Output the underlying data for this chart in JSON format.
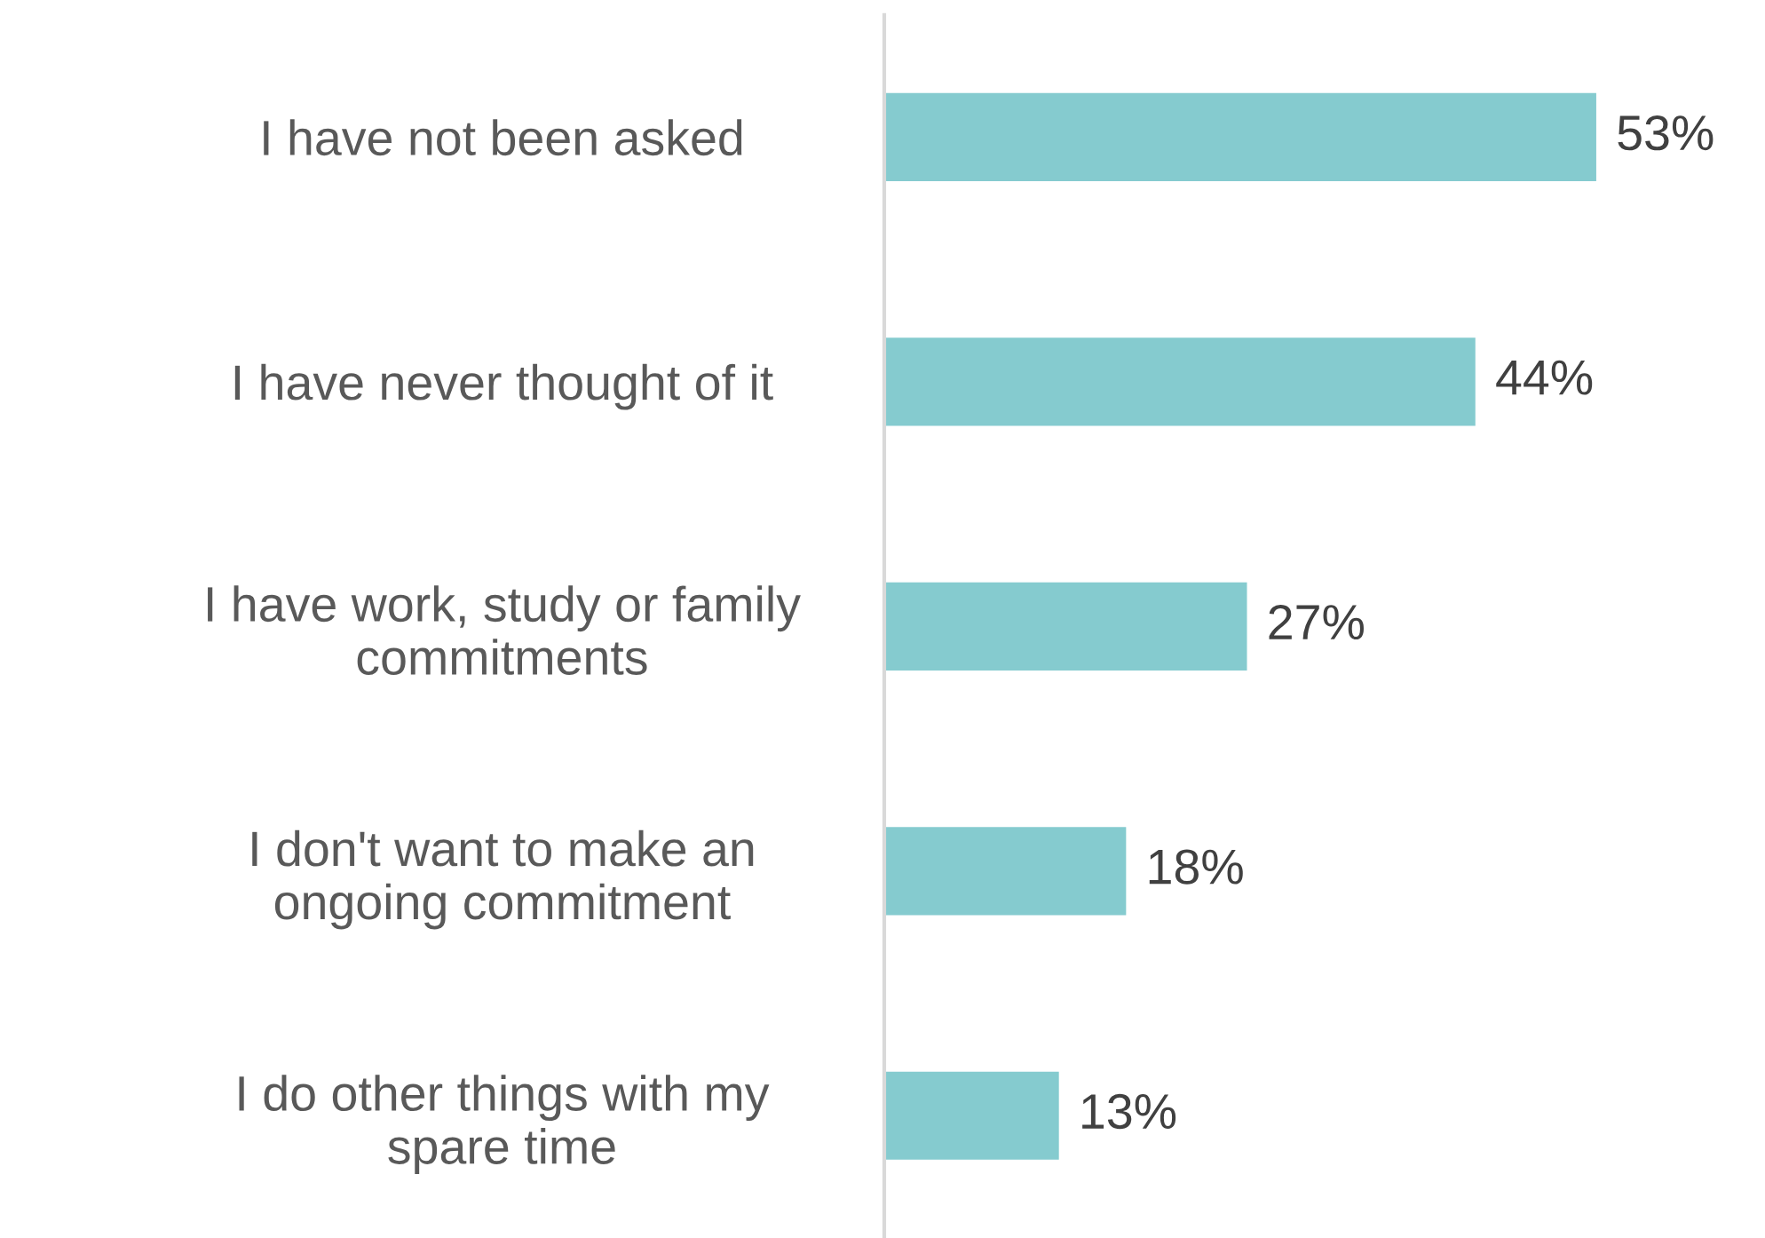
{
  "chart_data": {
    "type": "bar",
    "orientation": "horizontal",
    "categories": [
      "I have not been asked",
      "I have never thought of it",
      "I have work, study or family\ncommitments",
      "I don't want to make an\nongoing commitment",
      "I do other things with my\nspare time"
    ],
    "values": [
      53,
      44,
      27,
      18,
      13
    ],
    "value_labels": [
      "53%",
      "44%",
      "27%",
      "18%",
      "13%"
    ],
    "color": "#85cbcf",
    "grid": false,
    "legend": false
  }
}
